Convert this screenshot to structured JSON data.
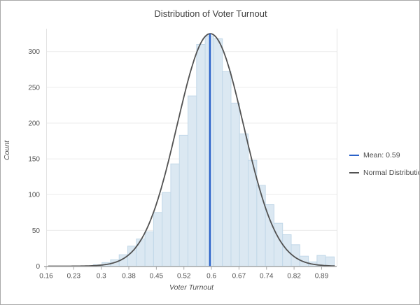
{
  "window": {
    "background": "#ffffff",
    "border_color": "#a9a9a9"
  },
  "chart_data": {
    "type": "bar",
    "subtype": "histogram",
    "title": "Distribution of Voter Turnout",
    "xlabel": "Voter Turnout",
    "ylabel": "Count",
    "grid": true,
    "legend_position": "right",
    "xlim": [
      0.16,
      0.93
    ],
    "ylim": [
      0,
      332
    ],
    "x_tick_labels": [
      "0.16",
      "0.23",
      "0.3",
      "0.38",
      "0.45",
      "0.52",
      "0.6",
      "0.67",
      "0.74",
      "0.82",
      "0.89"
    ],
    "y_ticks": [
      {
        "v": 0,
        "label": "0"
      },
      {
        "v": 50,
        "label": "50"
      },
      {
        "v": 100,
        "label": "100"
      },
      {
        "v": 150,
        "label": "150"
      },
      {
        "v": 200,
        "label": "200"
      },
      {
        "v": 250,
        "label": "250"
      },
      {
        "v": 300,
        "label": "300"
      }
    ],
    "bins": {
      "start": 0.285,
      "width": 0.0228,
      "counts": [
        2,
        5,
        9,
        16,
        28,
        38,
        48,
        75,
        103,
        143,
        183,
        238,
        310,
        322,
        318,
        272,
        228,
        185,
        148,
        113,
        86,
        60,
        44,
        30,
        14,
        6,
        15,
        13
      ]
    },
    "mean_line": {
      "value": 0.594,
      "label": "Mean: 0.59",
      "color": "#2a62c9"
    },
    "normal_curve": {
      "label": "Normal Distribution",
      "mu": 0.595,
      "sigma": 0.088,
      "peak": 325,
      "color": "#525252"
    },
    "styles": {
      "bar_fill": "#dbe8f2",
      "bar_stroke": "#c2d8e8",
      "gridline_color": "#ececec",
      "axis_line_color": "#a8a8a8",
      "side_border_color": "#e3e3e3",
      "tick_label_color": "#555555"
    }
  }
}
